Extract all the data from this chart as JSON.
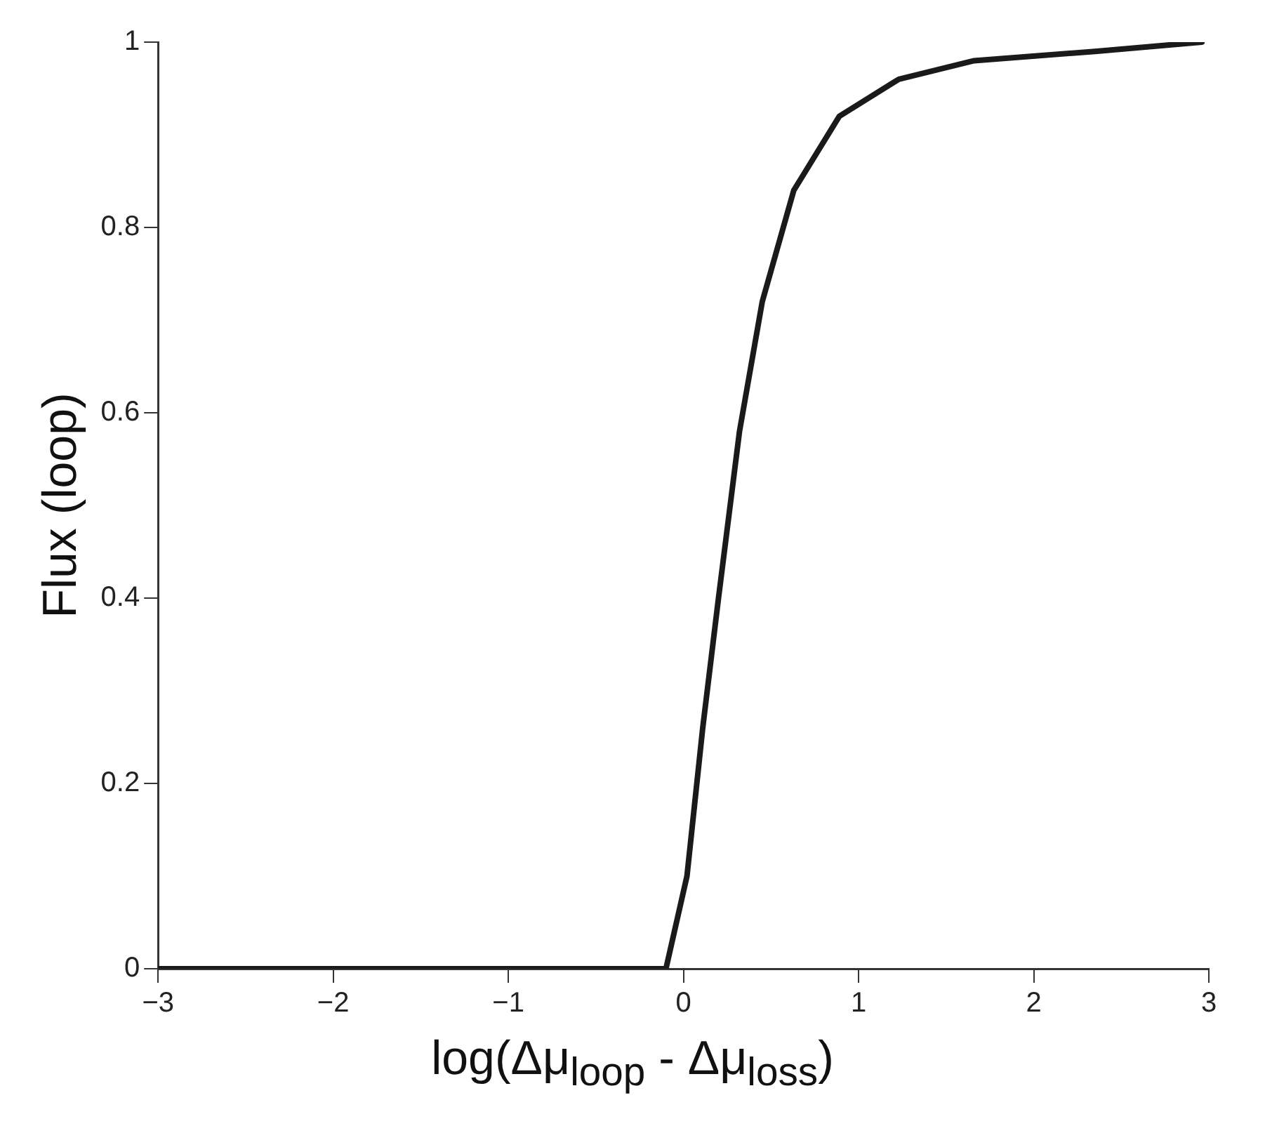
{
  "chart_data": {
    "type": "line",
    "xlabel": "log(Δμ$_{loop}$ - Δμ$_{loss}$)",
    "ylabel": "Flux (loop)",
    "series": [
      {
        "color": "#1a1a1a",
        "x": [
          -3,
          -0.1,
          0.02,
          0.11,
          0.2,
          0.32,
          0.45,
          0.63,
          0.89,
          1.23,
          1.66,
          2.35,
          2.96
        ],
        "values": [
          0,
          0,
          0.1,
          0.26,
          0.4,
          0.58,
          0.72,
          0.84,
          0.92,
          0.96,
          0.98,
          0.99,
          1
        ]
      }
    ],
    "xlim": [
      -3,
      3
    ],
    "xticks": [
      {
        "value": -3,
        "label": "−3"
      },
      {
        "value": -2,
        "label": "−2"
      },
      {
        "value": -1,
        "label": "−1"
      },
      0,
      1,
      2,
      3
    ],
    "ylim": [
      0,
      1
    ],
    "yticks": [
      0,
      0.2,
      0.4,
      0.6,
      0.8,
      1
    ],
    "grid": false,
    "legend": false,
    "marker": "none",
    "line_style": "solid"
  }
}
